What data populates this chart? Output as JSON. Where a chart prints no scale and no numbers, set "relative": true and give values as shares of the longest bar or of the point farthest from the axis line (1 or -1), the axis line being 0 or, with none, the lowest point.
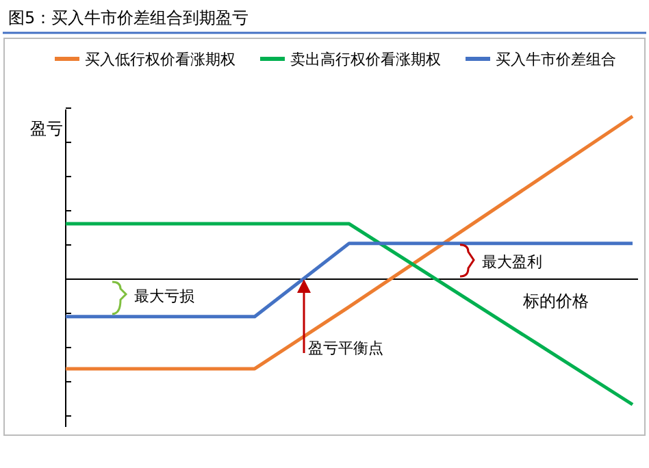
{
  "chart_data": {
    "type": "line",
    "title": "图5：买入牛市价差组合到期盈亏",
    "ylabel": "盈亏",
    "xlabel": "标的价格",
    "relative": true,
    "legend": "top",
    "marker": "none",
    "line_style": "solid",
    "categories": [
      null,
      null,
      null,
      null,
      null,
      null,
      null
    ],
    "series": [
      {
        "name": "买入低行权价看涨期权",
        "color": "#ed7d31",
        "values": [
          -0.55,
          -0.55,
          -0.55,
          -0.17,
          0.22,
          0.61,
          1
        ]
      },
      {
        "name": "卖出高行权价看涨期权",
        "color": "#00b050",
        "values": [
          0.34,
          0.34,
          0.34,
          0.34,
          -0.03,
          -0.4,
          -0.77
        ]
      },
      {
        "name": "买入牛市价差组合",
        "color": "#4472c4",
        "values": [
          -0.23,
          -0.23,
          -0.23,
          0.22,
          0.22,
          0.22,
          0.22
        ]
      }
    ],
    "annotations": [
      "最大亏损",
      "最大盈利",
      "盈亏平衡点"
    ]
  }
}
